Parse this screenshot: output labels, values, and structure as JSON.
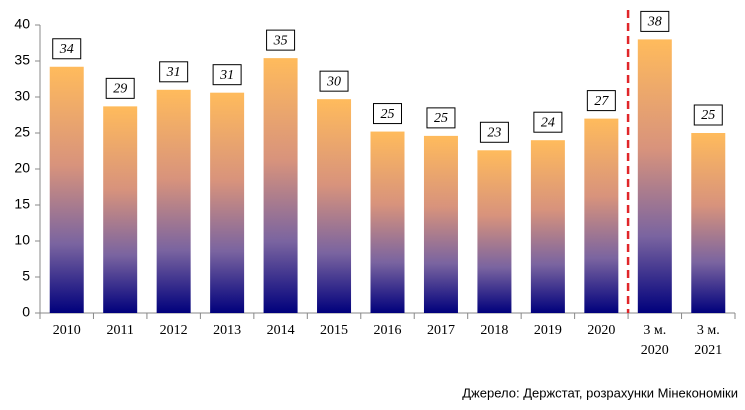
{
  "chart_data": {
    "type": "bar",
    "categories": [
      "2010",
      "2011",
      "2012",
      "2013",
      "2014",
      "2015",
      "2016",
      "2017",
      "2018",
      "2019",
      "2020",
      "3 м. 2020",
      "3 м. 2021"
    ],
    "values": [
      34.2,
      28.7,
      31.0,
      30.6,
      35.4,
      29.7,
      25.2,
      24.6,
      22.6,
      24.0,
      27.0,
      38.0,
      25.0
    ],
    "value_labels": [
      "34",
      "29",
      "31",
      "31",
      "35",
      "30",
      "25",
      "25",
      "23",
      "24",
      "27",
      "38",
      "25"
    ],
    "ylim": [
      0,
      40
    ],
    "yticks": [
      0,
      5,
      10,
      15,
      20,
      25,
      30,
      35,
      40
    ],
    "source": "Джерело: Держстат, розрахунки Мінекономіки"
  }
}
